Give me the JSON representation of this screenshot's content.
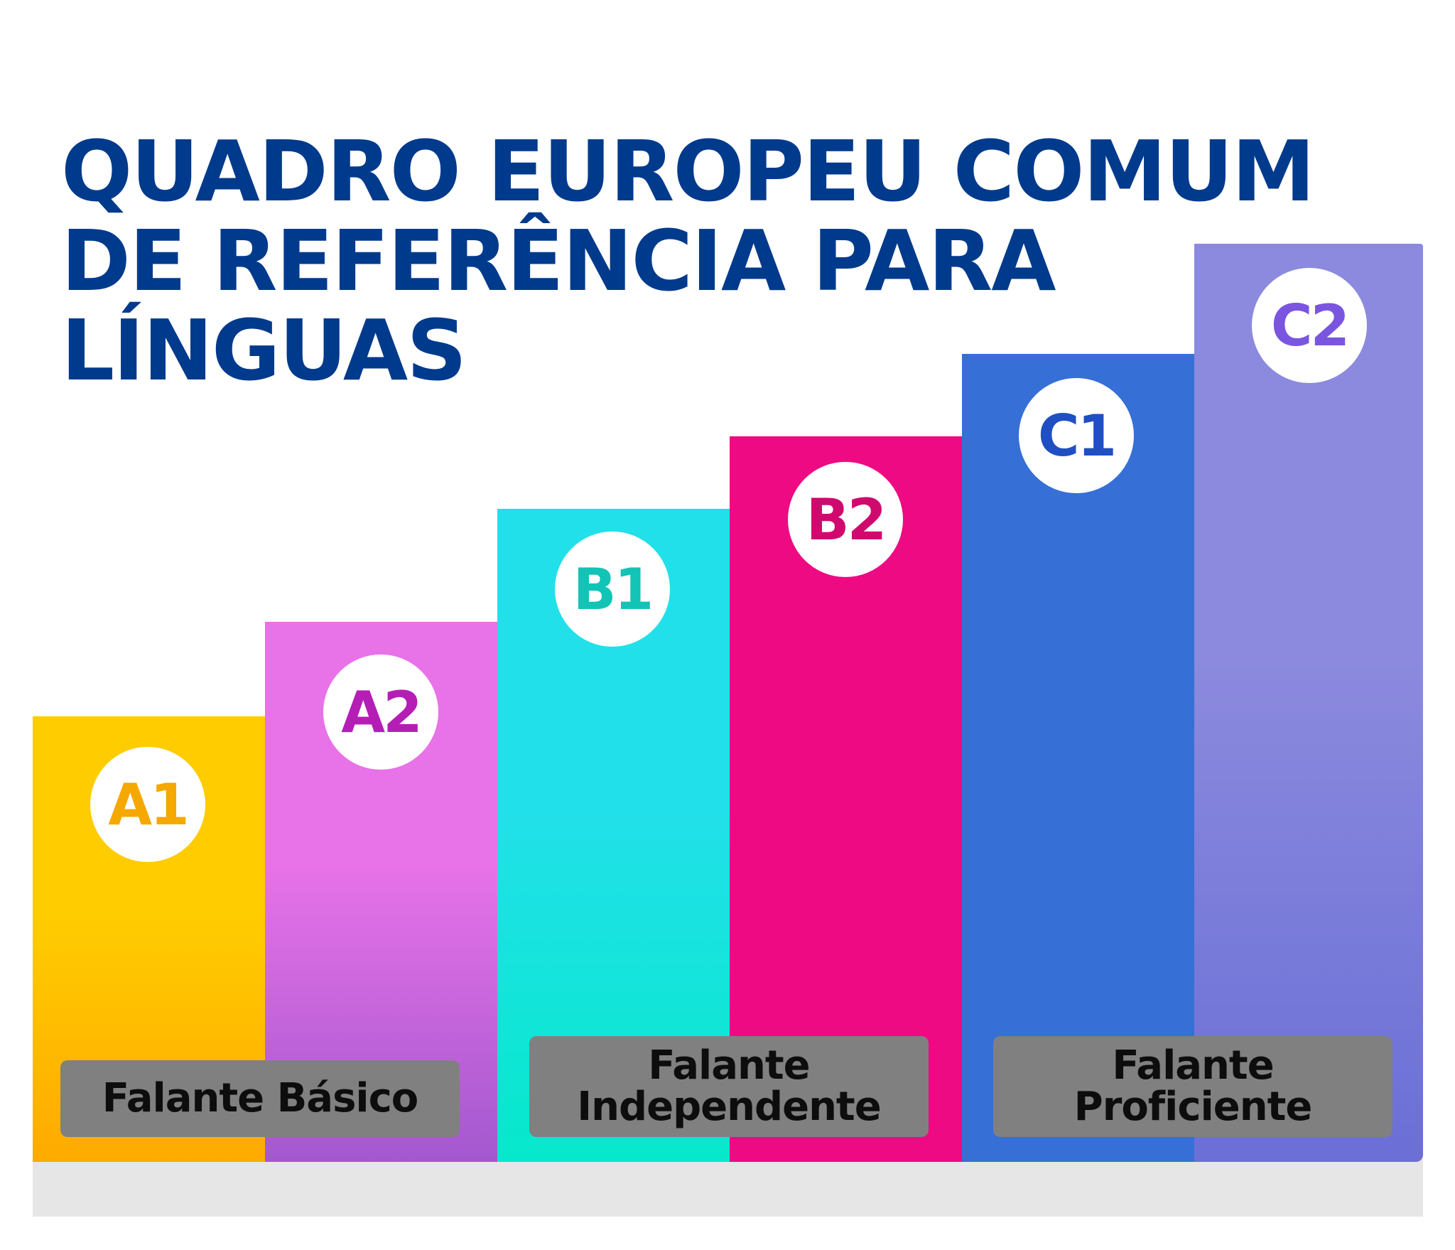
{
  "title": {
    "line1": "QUADRO EUROPEU COMUM",
    "line2": "DE REFERÊNCIA PARA",
    "line3": "LÍNGUAS"
  },
  "levels": [
    {
      "label": "A1",
      "rank": 1,
      "color_top": "#ffcc00",
      "color_bottom": "#ffaa00",
      "label_color": "#f5a800"
    },
    {
      "label": "A2",
      "rank": 2,
      "color_top": "#e872e8",
      "color_bottom": "#a358cf",
      "label_color": "#b51eb5"
    },
    {
      "label": "B1",
      "rank": 3,
      "color_top": "#22e0ea",
      "color_bottom": "#06e8cc",
      "label_color": "#12c4b6"
    },
    {
      "label": "B2",
      "rank": 4,
      "color_top": "#ee0a82",
      "color_bottom": "#ee0a82",
      "label_color": "#d0096e"
    },
    {
      "label": "C1",
      "rank": 5,
      "color_top": "#366fd6",
      "color_bottom": "#366fd6",
      "label_color": "#1f4fc2"
    },
    {
      "label": "C2",
      "rank": 6,
      "color_top": "#8b8ade",
      "color_bottom": "#6b6fd6",
      "label_color": "#7a55e0"
    }
  ],
  "groups": [
    {
      "label_line1": "Falante Básico",
      "label_line2": ""
    },
    {
      "label_line1": "Falante",
      "label_line2": "Independente"
    },
    {
      "label_line1": "Falante",
      "label_line2": "Proficiente"
    }
  ]
}
